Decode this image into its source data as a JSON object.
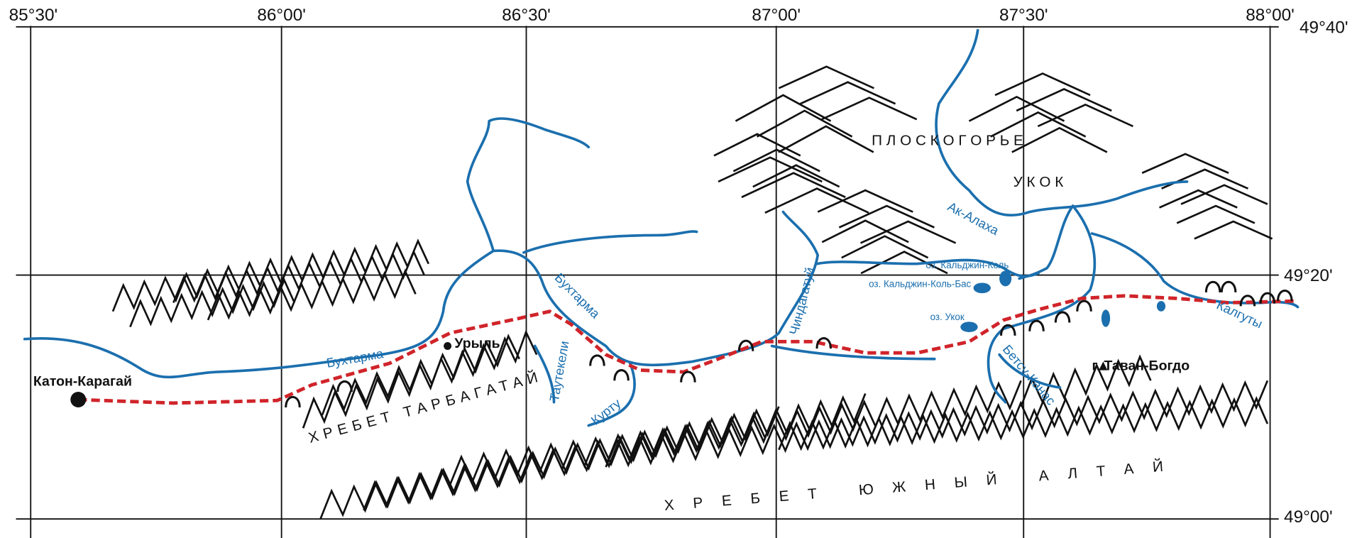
{
  "grid": {
    "longitudes": [
      "85°30'",
      "86°00'",
      "86°30'",
      "87°00'",
      "87°30'",
      "88°00'"
    ],
    "latitudes": [
      "49°40'",
      "49°20'",
      "49°00'"
    ]
  },
  "plateau": {
    "line1": "П Л О С К О Г О Р Ь Е",
    "line2": "У К О К"
  },
  "ranges": {
    "tarbagatai": "ХРЕБЕТ ТАРБАГАТАЙ",
    "south_altai": "ХРЕБЕТ ЮЖНЫЙ АЛТАЙ"
  },
  "places": {
    "katon_karagai": "Катон-Карагай",
    "uryl": "Урыль",
    "tavan_bogdo": "г. Таван-Богдо"
  },
  "rivers": {
    "bukhtarma_lower": "Бухтарма",
    "bukhtarma_upper": "Бухтарма",
    "tautekeli": "Таутекели",
    "kurtu": "Курту",
    "chindagatui": "Чиндагатуй",
    "ak_alakha": "Ак-Алаха",
    "betsu_kanas": "Бетсу-Канас",
    "kalguty": "Калгуты"
  },
  "lakes": {
    "kaldzhin_kol": "оз. Кальджин-Коль",
    "kaldzhin_kol_bas": "оз. Кальджин-Коль-Бас",
    "ukok": "оз. Укок"
  }
}
